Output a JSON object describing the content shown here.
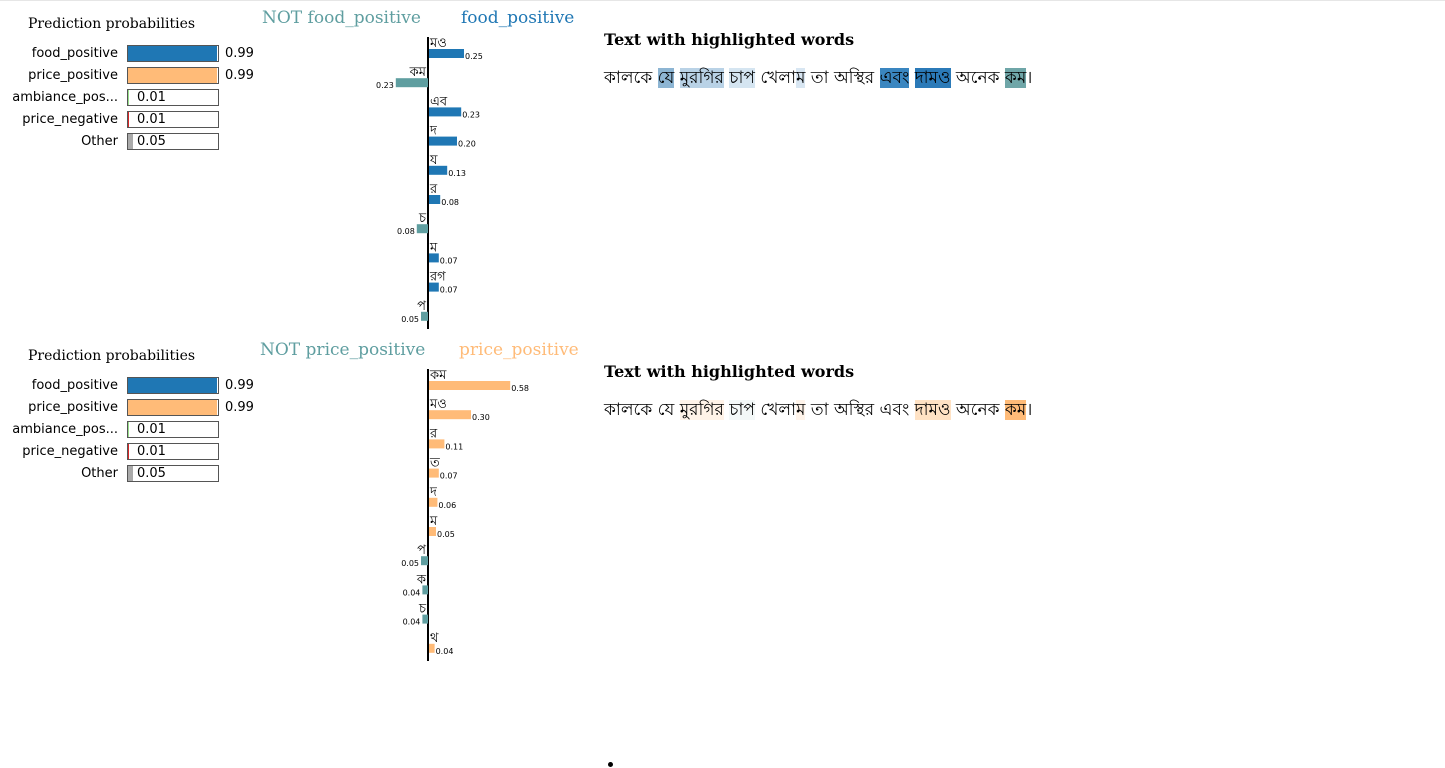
{
  "panels": [
    {
      "prob_title": "Prediction probabilities",
      "probs": [
        {
          "label": "food_positive",
          "value": "0.99",
          "fraction": 0.99,
          "color": "#1f77b4"
        },
        {
          "label": "price_positive",
          "value": "0.99",
          "fraction": 0.99,
          "color": "#ffbb78"
        },
        {
          "label": "ambiance_pos...",
          "value": "0.01",
          "fraction": 0.01,
          "color": "#98df8a"
        },
        {
          "label": "price_negative",
          "value": "0.01",
          "fraction": 0.01,
          "color": "#d62728"
        },
        {
          "label": "Other",
          "value": "0.05",
          "fraction": 0.05,
          "color": "#aaaaaa"
        }
      ],
      "neg_label": "NOT food_positive",
      "pos_label": "food_positive",
      "neg_color": "#5f9ea0",
      "pos_color": "#1f77b4",
      "chart_data": {
        "type": "bar",
        "orientation": "horizontal",
        "categories": [
          "মও",
          "কম",
          "এব",
          "দ",
          "য",
          "র",
          "চ",
          "ম",
          "রগ",
          "প"
        ],
        "values": [
          0.25,
          -0.23,
          0.23,
          0.2,
          0.13,
          0.08,
          -0.08,
          0.07,
          0.07,
          -0.05
        ],
        "value_labels": [
          "0.25",
          "0.23",
          "0.23",
          "0.20",
          "0.13",
          "0.08",
          "0.08",
          "0.07",
          "0.07",
          "0.05"
        ],
        "xlabel": "",
        "ylabel": ""
      },
      "hl_title": "Text with highlighted words",
      "hl_words": [
        {
          "text": "কালকে",
          "bg": ""
        },
        {
          "text": " ",
          "bg": ""
        },
        {
          "text": "যে",
          "bg": "#8db5d3"
        },
        {
          "text": " ",
          "bg": ""
        },
        {
          "text": "মুরগির",
          "bg": "#b9d2e6"
        },
        {
          "text": " ",
          "bg": ""
        },
        {
          "text": "চাপ",
          "bg": "#d5e5f1"
        },
        {
          "text": " খেলা",
          "bg": ""
        },
        {
          "text": "ম",
          "bg": "#d8e6f2"
        },
        {
          "text": " তা অস্থির ",
          "bg": ""
        },
        {
          "text": "এবং",
          "bg": "#3a86c0"
        },
        {
          "text": " ",
          "bg": ""
        },
        {
          "text": "দামও",
          "bg": "#2b7ab8"
        },
        {
          "text": " অনেক ",
          "bg": ""
        },
        {
          "text": "কম",
          "bg": "#6fa6a8"
        },
        {
          "text": "।",
          "bg": ""
        }
      ]
    },
    {
      "prob_title": "Prediction probabilities",
      "probs": [
        {
          "label": "food_positive",
          "value": "0.99",
          "fraction": 0.99,
          "color": "#1f77b4"
        },
        {
          "label": "price_positive",
          "value": "0.99",
          "fraction": 0.99,
          "color": "#ffbb78"
        },
        {
          "label": "ambiance_pos...",
          "value": "0.01",
          "fraction": 0.01,
          "color": "#98df8a"
        },
        {
          "label": "price_negative",
          "value": "0.01",
          "fraction": 0.01,
          "color": "#d62728"
        },
        {
          "label": "Other",
          "value": "0.05",
          "fraction": 0.05,
          "color": "#aaaaaa"
        }
      ],
      "neg_label": "NOT price_positive",
      "pos_label": "price_positive",
      "neg_color": "#5f9ea0",
      "pos_color": "#ffbb78",
      "chart_data": {
        "type": "bar",
        "orientation": "horizontal",
        "categories": [
          "কম",
          "মও",
          "র",
          "ত",
          "দ",
          "ম",
          "প",
          "ক",
          "চ",
          "থ"
        ],
        "values": [
          0.58,
          0.3,
          0.11,
          0.07,
          0.06,
          0.05,
          -0.05,
          -0.04,
          -0.04,
          0.04
        ],
        "value_labels": [
          "0.58",
          "0.30",
          "0.11",
          "0.07",
          "0.06",
          "0.05",
          "0.05",
          "0.04",
          "0.04",
          "0.04"
        ],
        "xlabel": "",
        "ylabel": ""
      },
      "hl_title": "Text with highlighted words",
      "hl_words": [
        {
          "text": "কালকে",
          "bg": ""
        },
        {
          "text": " ",
          "bg": ""
        },
        {
          "text": "যে",
          "bg": ""
        },
        {
          "text": " ",
          "bg": ""
        },
        {
          "text": "মুরগির",
          "bg": "#fff3e8"
        },
        {
          "text": " ",
          "bg": ""
        },
        {
          "text": "চাপ",
          "bg": "#f3f8f8"
        },
        {
          "text": " খেলা",
          "bg": ""
        },
        {
          "text": "ম",
          "bg": "#fff4ea"
        },
        {
          "text": " তা অস্থির এবং ",
          "bg": ""
        },
        {
          "text": "দামও",
          "bg": "#ffe2c4"
        },
        {
          "text": " অনেক ",
          "bg": ""
        },
        {
          "text": "কম",
          "bg": "#ffbb78"
        },
        {
          "text": "।",
          "bg": ""
        }
      ]
    }
  ]
}
